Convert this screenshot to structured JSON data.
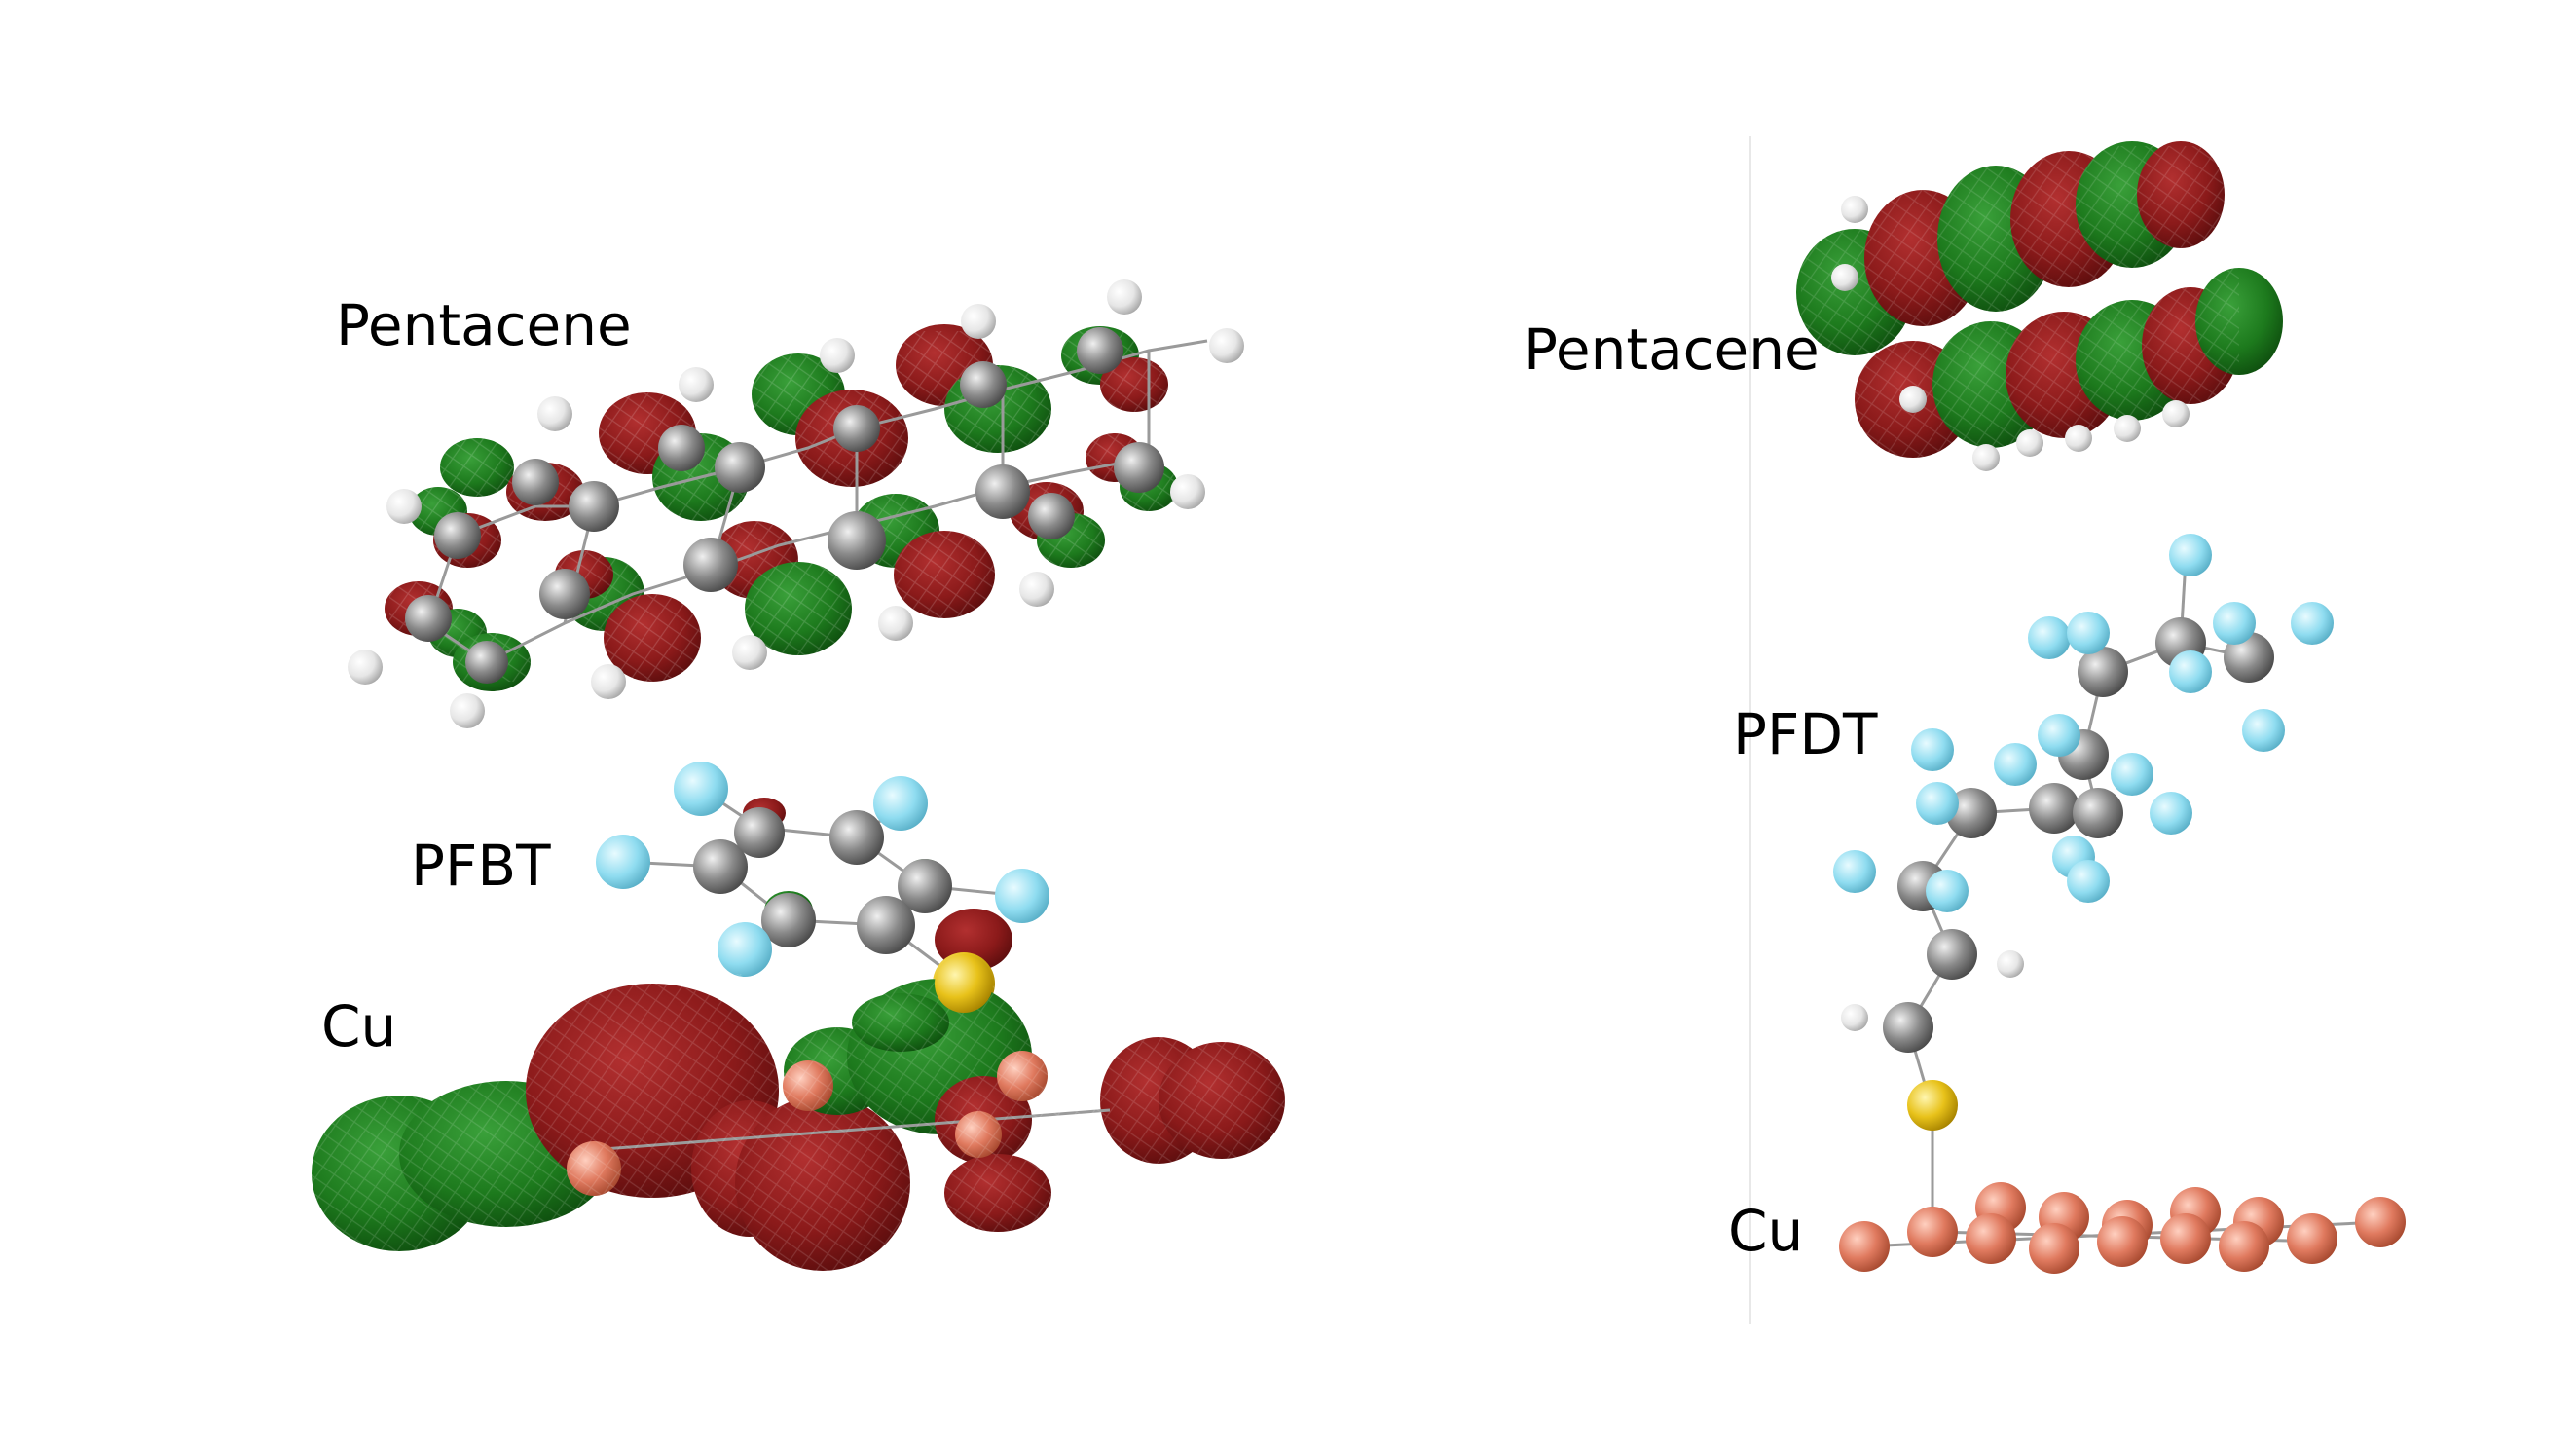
{
  "left_panel": {
    "top_label": "Pentacene",
    "middle_label": "PFBT",
    "bottom_label": "Cu"
  },
  "right_panel": {
    "top_label": "Pentacene",
    "middle_label": "PFDT",
    "bottom_label": "Cu"
  },
  "colors": {
    "orbital_positive": "#8b1a1a",
    "orbital_negative": "#1d7a1d",
    "carbon": "#8a8a8a",
    "hydrogen": "#f2f2f2",
    "fluorine": "#8fdcf0",
    "sulfur": "#e8c21a",
    "copper": "#e07a5f"
  }
}
